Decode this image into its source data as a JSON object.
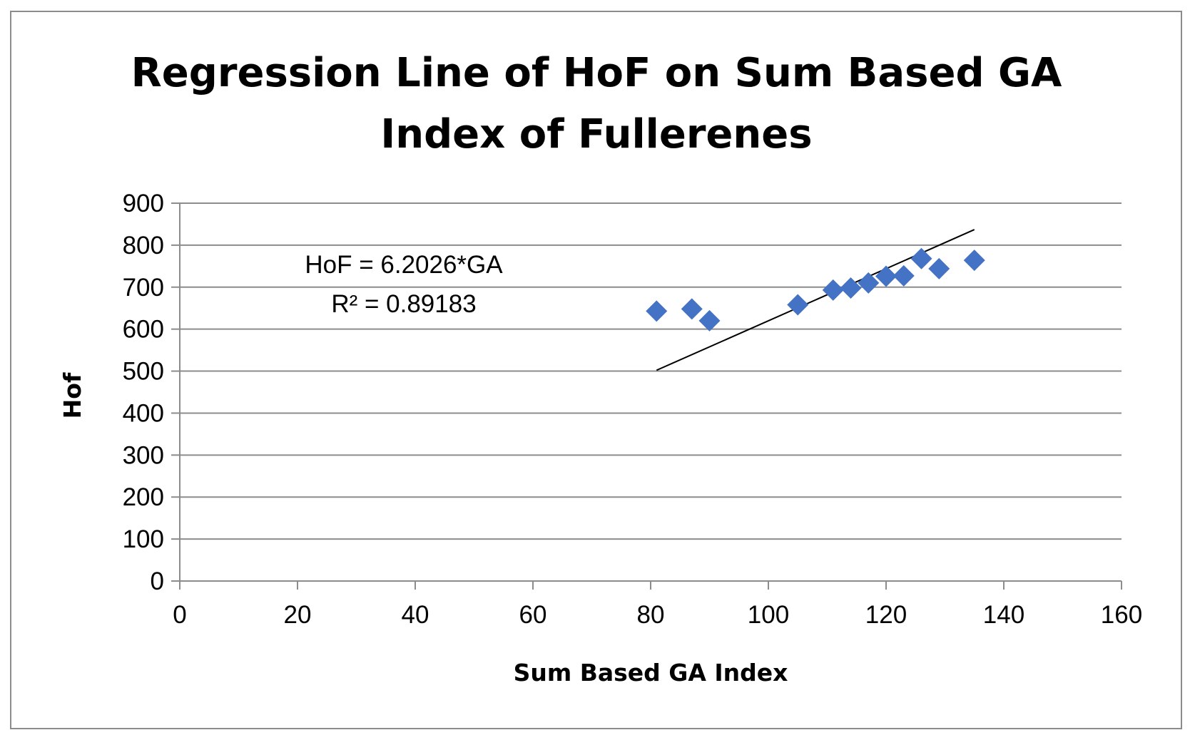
{
  "chart_data": {
    "type": "scatter",
    "title_lines": [
      "Regression Line of HoF on Sum Based GA",
      "Index  of Fullerenes"
    ],
    "xlabel": "Sum Based GA Index",
    "ylabel": "Hof",
    "xlim": [
      0,
      160
    ],
    "ylim": [
      0,
      900
    ],
    "x_ticks": [
      0,
      20,
      40,
      60,
      80,
      100,
      120,
      140,
      160
    ],
    "y_ticks": [
      0,
      100,
      200,
      300,
      400,
      500,
      600,
      700,
      800,
      900
    ],
    "grid": true,
    "series": [
      {
        "name": "HoF",
        "marker": "diamond",
        "color": "#4472c4",
        "points": [
          {
            "x": 81,
            "y": 643
          },
          {
            "x": 87,
            "y": 648
          },
          {
            "x": 90,
            "y": 620
          },
          {
            "x": 105,
            "y": 658
          },
          {
            "x": 111,
            "y": 693
          },
          {
            "x": 114,
            "y": 698
          },
          {
            "x": 117,
            "y": 710
          },
          {
            "x": 120,
            "y": 726
          },
          {
            "x": 123,
            "y": 727
          },
          {
            "x": 126,
            "y": 768
          },
          {
            "x": 129,
            "y": 744
          },
          {
            "x": 135,
            "y": 764
          }
        ]
      }
    ],
    "trendline": {
      "type": "linear",
      "color": "#000000",
      "start": {
        "x": 81,
        "y": 502
      },
      "end": {
        "x": 135,
        "y": 837
      }
    },
    "annotation": {
      "equation": "HoF = 6.2026*GA",
      "r_squared": "R² = 0.89183"
    }
  }
}
